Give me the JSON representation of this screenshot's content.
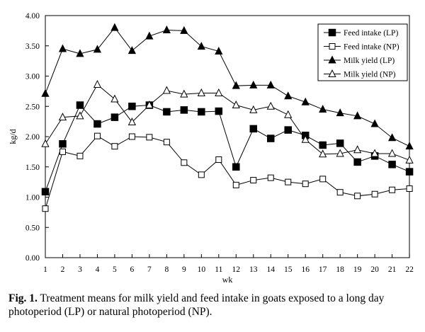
{
  "chart_data": {
    "type": "line",
    "x": [
      1,
      2,
      3,
      4,
      5,
      6,
      7,
      8,
      9,
      10,
      11,
      12,
      13,
      14,
      15,
      16,
      17,
      18,
      19,
      20,
      21,
      22
    ],
    "xlabel": "wk",
    "ylabel": "kg/d",
    "ylim": [
      0,
      4
    ],
    "yticks": [
      "0.00",
      "0.50",
      "1.00",
      "1.50",
      "2.00",
      "2.50",
      "3.00",
      "3.50",
      "4.00"
    ],
    "xticks": [
      "1",
      "2",
      "3",
      "4",
      "5",
      "6",
      "7",
      "8",
      "9",
      "10",
      "11",
      "12",
      "13",
      "14",
      "15",
      "16",
      "17",
      "18",
      "19",
      "20",
      "21",
      "22"
    ],
    "grid": false,
    "legend_position": "top-right",
    "series": [
      {
        "name": "Feed intake (LP)",
        "marker": "square-filled",
        "values": [
          1.09,
          1.88,
          2.52,
          2.21,
          2.32,
          2.5,
          2.52,
          2.41,
          2.44,
          2.41,
          2.42,
          1.5,
          2.13,
          1.97,
          2.11,
          2.02,
          1.86,
          1.89,
          1.58,
          1.68,
          1.54,
          1.42
        ]
      },
      {
        "name": "Feed intake (NP)",
        "marker": "square-open",
        "values": [
          0.81,
          1.75,
          1.68,
          2.01,
          1.84,
          2.0,
          1.99,
          1.91,
          1.57,
          1.37,
          1.62,
          1.2,
          1.28,
          1.32,
          1.25,
          1.22,
          1.3,
          1.08,
          1.02,
          1.05,
          1.12,
          1.14
        ]
      },
      {
        "name": "Milk yield (LP)",
        "marker": "triangle-filled",
        "values": [
          2.71,
          3.45,
          3.37,
          3.44,
          3.8,
          3.42,
          3.66,
          3.76,
          3.75,
          3.49,
          3.41,
          2.84,
          2.85,
          2.85,
          2.67,
          2.57,
          2.45,
          2.39,
          2.34,
          2.21,
          1.98,
          1.84
        ]
      },
      {
        "name": "Milk yield (NP)",
        "marker": "triangle-open",
        "values": [
          1.88,
          2.32,
          2.34,
          2.86,
          2.62,
          2.24,
          2.52,
          2.76,
          2.7,
          2.72,
          2.72,
          2.52,
          2.44,
          2.5,
          2.36,
          1.95,
          1.71,
          1.72,
          1.78,
          1.72,
          1.72,
          1.61
        ]
      }
    ]
  },
  "caption": {
    "label": "Fig. 1.",
    "text": " Treatment means for milk yield and feed intake in goats exposed to a long day photoperiod (LP) or natural photoperiod (NP)."
  }
}
